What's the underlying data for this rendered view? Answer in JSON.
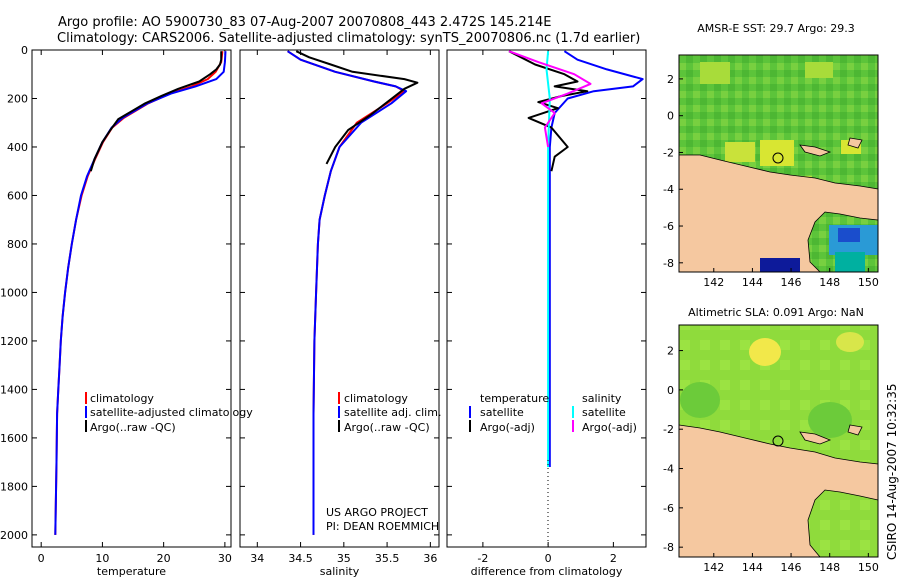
{
  "header": {
    "line1": "Argo profile: AO 5900730_83 07-Aug-2007 20070808_443 2.472S 145.214E",
    "line2": "Climatology: CARS2006. Satellite-adjusted climatology: synTS_20070806.nc (1.7d earlier)"
  },
  "credit": {
    "project": "US ARGO PROJECT",
    "pi": "PI: DEAN ROEMMICH",
    "stamp": "CSIRO 14-Aug-2007 10:32:35"
  },
  "colors": {
    "climatology": "#ff0000",
    "satellite": "#0000ff",
    "argo": "#000000",
    "sal_satellite": "#00ffff",
    "sal_argo": "#ff00ff",
    "land": "#f5c8a0",
    "ocean_warm": "#66cc33",
    "ocean_hot": "#e8e62e",
    "ocean_cold": "#1a4dcc"
  },
  "chart_data": [
    {
      "type": "line",
      "xlabel": "temperature",
      "ylim": [
        2050,
        0
      ],
      "xlim": [
        -1.5,
        31
      ],
      "xticks": [
        0,
        10,
        20,
        30
      ],
      "yticks": [
        0,
        200,
        400,
        600,
        800,
        1000,
        1200,
        1400,
        1600,
        1800,
        2000
      ],
      "legend": [
        "climatology",
        "satellite-adjusted climatology",
        "Argo(..raw -QC)"
      ],
      "series": [
        {
          "name": "climatology",
          "color": "#ff0000",
          "x": [
            29.6,
            29.4,
            28.5,
            27.2,
            24.6,
            21.0,
            17.5,
            13.5,
            11.6,
            10.1,
            8.8,
            7.6,
            6.6,
            5.7,
            5.0,
            4.4,
            3.9,
            3.5,
            3.2,
            3.0,
            2.8,
            2.6,
            2.5,
            2.4,
            2.3
          ],
          "y": [
            5,
            50,
            90,
            120,
            150,
            180,
            220,
            280,
            320,
            380,
            450,
            520,
            600,
            700,
            800,
            900,
            1000,
            1100,
            1200,
            1300,
            1400,
            1500,
            1700,
            1850,
            2000
          ]
        },
        {
          "name": "satellite-adjusted climatology",
          "color": "#0000ff",
          "x": [
            30.1,
            30.0,
            29.8,
            28.6,
            25.2,
            21.2,
            17.4,
            13.3,
            11.5,
            10.0,
            8.7,
            7.5,
            6.5,
            5.7,
            5.0,
            4.4,
            3.9,
            3.5,
            3.2,
            3.0,
            2.8,
            2.6,
            2.5,
            2.4,
            2.3
          ],
          "y": [
            5,
            50,
            90,
            120,
            150,
            180,
            220,
            280,
            320,
            380,
            450,
            520,
            600,
            700,
            800,
            900,
            1000,
            1100,
            1200,
            1300,
            1400,
            1500,
            1700,
            1850,
            2000
          ]
        },
        {
          "name": "Argo(..raw -QC)",
          "color": "#000000",
          "x": [
            29.4,
            29.4,
            29.2,
            28.6,
            27.6,
            25.8,
            22.4,
            19.6,
            17.0,
            12.6,
            11.3,
            10.0,
            8.7,
            8.1
          ],
          "y": [
            5,
            40,
            60,
            80,
            100,
            130,
            160,
            190,
            220,
            285,
            330,
            380,
            450,
            500
          ]
        }
      ]
    },
    {
      "type": "line",
      "xlabel": "salinity",
      "ylim": [
        2050,
        0
      ],
      "xlim": [
        33.8,
        36.1
      ],
      "xticks": [
        34,
        34.5,
        35,
        35.5,
        36
      ],
      "legend": [
        "climatology",
        "satellite adj. clim.",
        "Argo(..raw -QC)"
      ],
      "series": [
        {
          "name": "climatology",
          "color": "#ff0000",
          "x": [
            34.35,
            34.5,
            34.9,
            35.35,
            35.6,
            35.7,
            35.5,
            35.15,
            34.95,
            34.85,
            34.78,
            34.72,
            34.7,
            34.68,
            34.66,
            34.65,
            34.65,
            34.65
          ],
          "y": [
            5,
            40,
            90,
            130,
            150,
            170,
            220,
            300,
            400,
            500,
            600,
            700,
            800,
            1000,
            1200,
            1500,
            1800,
            2000
          ]
        },
        {
          "name": "satellite adj. clim.",
          "color": "#0000ff",
          "x": [
            34.35,
            34.5,
            34.9,
            35.35,
            35.6,
            35.72,
            35.55,
            35.2,
            34.95,
            34.85,
            34.78,
            34.72,
            34.7,
            34.68,
            34.66,
            34.65,
            34.65,
            34.65
          ],
          "y": [
            5,
            40,
            90,
            130,
            150,
            170,
            220,
            300,
            400,
            500,
            600,
            700,
            800,
            1000,
            1200,
            1500,
            1800,
            2000
          ]
        },
        {
          "name": "Argo(..raw -QC)",
          "color": "#000000",
          "x": [
            34.45,
            34.6,
            34.85,
            35.1,
            35.7,
            35.85,
            35.7,
            35.3,
            35.05,
            34.9,
            34.8
          ],
          "y": [
            5,
            30,
            60,
            90,
            120,
            135,
            160,
            270,
            330,
            400,
            470
          ]
        }
      ]
    },
    {
      "type": "line",
      "xlabel": "difference from climatology",
      "ylim": [
        2050,
        0
      ],
      "xlim": [
        -3.1,
        3.0
      ],
      "xticks": [
        -2,
        0,
        2
      ],
      "legend": [
        "temperature",
        "satellite",
        "Argo(-adj)",
        "salinity",
        "satellite",
        "Argo(-adj)"
      ],
      "series": [
        {
          "name": "satellite",
          "color": "#0000ff",
          "x": [
            0.5,
            0.9,
            1.8,
            2.9,
            2.6,
            1.4,
            0.6,
            0.2,
            0.1,
            0.05,
            0.05,
            0.05,
            0.05
          ],
          "y": [
            5,
            40,
            80,
            120,
            150,
            170,
            200,
            260,
            320,
            400,
            600,
            1000,
            1720
          ]
        },
        {
          "name": "Argo(-adj)",
          "color": "#000000",
          "x": [
            -1.2,
            -0.4,
            0.5,
            0.9,
            0.2,
            1.2,
            0.4,
            -0.3,
            0.3,
            -0.6,
            0.1,
            0.6,
            0.2,
            0.1
          ],
          "y": [
            5,
            60,
            100,
            130,
            150,
            170,
            190,
            215,
            240,
            280,
            320,
            400,
            440,
            500
          ]
        },
        {
          "name": "satellite",
          "color": "#00ffff",
          "x": [
            0.0,
            -0.05,
            0.05,
            0.0,
            0.0,
            0.0,
            0.0
          ],
          "y": [
            5,
            80,
            200,
            400,
            800,
            1200,
            1720
          ]
        },
        {
          "name": "Argo(-adj)",
          "color": "#ff00ff",
          "x": [
            -1.2,
            -0.3,
            0.8,
            1.3,
            0.6,
            -0.2,
            0.2,
            -0.1,
            0.0
          ],
          "y": [
            5,
            50,
            100,
            140,
            180,
            220,
            260,
            320,
            400
          ]
        }
      ]
    },
    {
      "type": "heatmap",
      "title": "AMSR-E SST: 29.7  Argo: 29.3",
      "xlim": [
        140.2,
        150.5
      ],
      "ylim": [
        -8.5,
        3.3
      ],
      "xticks": [
        142,
        144,
        146,
        148,
        150
      ],
      "yticks": [
        -8,
        -6,
        -4,
        -2,
        0,
        2
      ],
      "marker": {
        "lon": 145.2,
        "lat": -2.5
      }
    },
    {
      "type": "heatmap",
      "title": "Altimetric SLA: 0.091  Argo: NaN",
      "xlim": [
        140.2,
        150.5
      ],
      "ylim": [
        -8.5,
        3.3
      ],
      "xticks": [
        142,
        144,
        146,
        148,
        150
      ],
      "yticks": [
        -8,
        -6,
        -4,
        -2,
        0,
        2
      ],
      "marker": {
        "lon": 145.2,
        "lat": -2.5
      }
    }
  ]
}
